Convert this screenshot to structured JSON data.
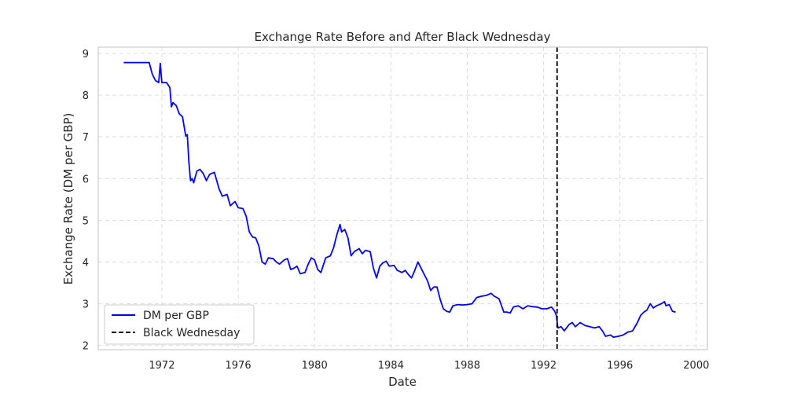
{
  "chart_data": {
    "type": "line",
    "title": "Exchange Rate Before and After Black Wednesday",
    "xlabel": "Date",
    "ylabel": "Exchange Rate (DM per GBP)",
    "xlim": [
      "1968-09-01",
      "2000-08-01"
    ],
    "ylim": [
      1.9,
      9.15
    ],
    "x_ticks": [
      "1972",
      "1976",
      "1980",
      "1984",
      "1988",
      "1992",
      "1996",
      "2000"
    ],
    "y_ticks": [
      "2",
      "3",
      "4",
      "5",
      "6",
      "7",
      "8",
      "9"
    ],
    "grid": true,
    "legend_position": "lower-left",
    "series": [
      {
        "name": "DM per GBP",
        "color": "#0000ff",
        "points": [
          [
            "1970-01",
            8.78
          ],
          [
            "1970-07",
            8.78
          ],
          [
            "1971-01",
            8.78
          ],
          [
            "1971-05",
            8.78
          ],
          [
            "1971-07",
            8.5
          ],
          [
            "1971-09",
            8.35
          ],
          [
            "1971-11",
            8.3
          ],
          [
            "1971-12",
            8.76
          ],
          [
            "1972-01",
            8.3
          ],
          [
            "1972-04",
            8.3
          ],
          [
            "1972-06",
            8.18
          ],
          [
            "1972-07",
            7.72
          ],
          [
            "1972-08",
            7.82
          ],
          [
            "1972-10",
            7.75
          ],
          [
            "1972-12",
            7.55
          ],
          [
            "1973-02",
            7.48
          ],
          [
            "1973-04",
            7.02
          ],
          [
            "1973-05",
            7.05
          ],
          [
            "1973-06",
            6.4
          ],
          [
            "1973-07",
            5.95
          ],
          [
            "1973-08",
            6.0
          ],
          [
            "1973-09",
            5.9
          ],
          [
            "1973-11",
            6.18
          ],
          [
            "1974-01",
            6.22
          ],
          [
            "1974-03",
            6.12
          ],
          [
            "1974-05",
            5.95
          ],
          [
            "1974-07",
            6.1
          ],
          [
            "1974-10",
            6.15
          ],
          [
            "1975-01",
            5.75
          ],
          [
            "1975-03",
            5.58
          ],
          [
            "1975-06",
            5.62
          ],
          [
            "1975-08",
            5.35
          ],
          [
            "1975-11",
            5.45
          ],
          [
            "1976-01",
            5.3
          ],
          [
            "1976-04",
            5.28
          ],
          [
            "1976-06",
            5.1
          ],
          [
            "1976-08",
            4.72
          ],
          [
            "1976-10",
            4.6
          ],
          [
            "1976-12",
            4.58
          ],
          [
            "1977-02",
            4.38
          ],
          [
            "1977-04",
            4.0
          ],
          [
            "1977-06",
            3.95
          ],
          [
            "1977-08",
            4.1
          ],
          [
            "1977-11",
            4.08
          ],
          [
            "1978-01",
            4.0
          ],
          [
            "1978-03",
            3.95
          ],
          [
            "1978-06",
            4.05
          ],
          [
            "1978-08",
            4.08
          ],
          [
            "1978-10",
            3.82
          ],
          [
            "1978-12",
            3.85
          ],
          [
            "1979-02",
            3.9
          ],
          [
            "1979-04",
            3.72
          ],
          [
            "1979-07",
            3.75
          ],
          [
            "1979-09",
            3.95
          ],
          [
            "1979-11",
            4.1
          ],
          [
            "1980-01",
            4.05
          ],
          [
            "1980-03",
            3.82
          ],
          [
            "1980-05",
            3.75
          ],
          [
            "1980-08",
            4.1
          ],
          [
            "1980-11",
            4.15
          ],
          [
            "1981-01",
            4.35
          ],
          [
            "1981-03",
            4.65
          ],
          [
            "1981-05",
            4.9
          ],
          [
            "1981-06",
            4.72
          ],
          [
            "1981-08",
            4.78
          ],
          [
            "1981-10",
            4.58
          ],
          [
            "1981-12",
            4.15
          ],
          [
            "1982-02",
            4.25
          ],
          [
            "1982-05",
            4.32
          ],
          [
            "1982-07",
            4.2
          ],
          [
            "1982-09",
            4.28
          ],
          [
            "1982-12",
            4.25
          ],
          [
            "1983-02",
            3.85
          ],
          [
            "1983-04",
            3.62
          ],
          [
            "1983-06",
            3.9
          ],
          [
            "1983-08",
            3.98
          ],
          [
            "1983-10",
            4.02
          ],
          [
            "1983-12",
            3.9
          ],
          [
            "1984-03",
            3.92
          ],
          [
            "1984-05",
            3.8
          ],
          [
            "1984-08",
            3.75
          ],
          [
            "1984-10",
            3.8
          ],
          [
            "1984-12",
            3.7
          ],
          [
            "1985-02",
            3.62
          ],
          [
            "1985-04",
            3.8
          ],
          [
            "1985-06",
            4.0
          ],
          [
            "1985-08",
            3.85
          ],
          [
            "1985-10",
            3.7
          ],
          [
            "1985-12",
            3.55
          ],
          [
            "1986-02",
            3.32
          ],
          [
            "1986-04",
            3.4
          ],
          [
            "1986-06",
            3.4
          ],
          [
            "1986-08",
            3.1
          ],
          [
            "1986-10",
            2.88
          ],
          [
            "1986-12",
            2.82
          ],
          [
            "1987-02",
            2.8
          ],
          [
            "1987-04",
            2.95
          ],
          [
            "1987-07",
            2.98
          ],
          [
            "1987-10",
            2.97
          ],
          [
            "1988-01",
            2.98
          ],
          [
            "1988-04",
            3.0
          ],
          [
            "1988-07",
            3.15
          ],
          [
            "1988-10",
            3.18
          ],
          [
            "1989-01",
            3.2
          ],
          [
            "1989-04",
            3.25
          ],
          [
            "1989-06",
            3.18
          ],
          [
            "1989-09",
            3.12
          ],
          [
            "1989-12",
            2.8
          ],
          [
            "1990-02",
            2.8
          ],
          [
            "1990-04",
            2.78
          ],
          [
            "1990-06",
            2.92
          ],
          [
            "1990-09",
            2.95
          ],
          [
            "1990-12",
            2.88
          ],
          [
            "1991-03",
            2.95
          ],
          [
            "1991-06",
            2.93
          ],
          [
            "1991-09",
            2.92
          ],
          [
            "1991-12",
            2.88
          ],
          [
            "1992-03",
            2.88
          ],
          [
            "1992-06",
            2.92
          ],
          [
            "1992-08",
            2.82
          ],
          [
            "1992-09",
            2.72
          ],
          [
            "1992-10",
            2.42
          ],
          [
            "1992-12",
            2.45
          ],
          [
            "1993-02",
            2.35
          ],
          [
            "1993-05",
            2.5
          ],
          [
            "1993-07",
            2.55
          ],
          [
            "1993-09",
            2.45
          ],
          [
            "1993-12",
            2.55
          ],
          [
            "1994-03",
            2.48
          ],
          [
            "1994-06",
            2.45
          ],
          [
            "1994-09",
            2.42
          ],
          [
            "1994-12",
            2.45
          ],
          [
            "1995-02",
            2.35
          ],
          [
            "1995-04",
            2.22
          ],
          [
            "1995-07",
            2.25
          ],
          [
            "1995-09",
            2.2
          ],
          [
            "1995-12",
            2.22
          ],
          [
            "1996-03",
            2.25
          ],
          [
            "1996-06",
            2.32
          ],
          [
            "1996-09",
            2.35
          ],
          [
            "1996-12",
            2.55
          ],
          [
            "1997-02",
            2.72
          ],
          [
            "1997-04",
            2.8
          ],
          [
            "1997-06",
            2.85
          ],
          [
            "1997-08",
            3.0
          ],
          [
            "1997-10",
            2.9
          ],
          [
            "1997-12",
            2.95
          ],
          [
            "1998-03",
            3.0
          ],
          [
            "1998-05",
            3.05
          ],
          [
            "1998-06",
            2.95
          ],
          [
            "1998-08",
            2.98
          ],
          [
            "1998-10",
            2.82
          ],
          [
            "1998-12",
            2.8
          ]
        ]
      },
      {
        "name": "Black Wednesday",
        "color": "#000000",
        "style": "dashed",
        "date": "1992-09-16"
      }
    ]
  }
}
